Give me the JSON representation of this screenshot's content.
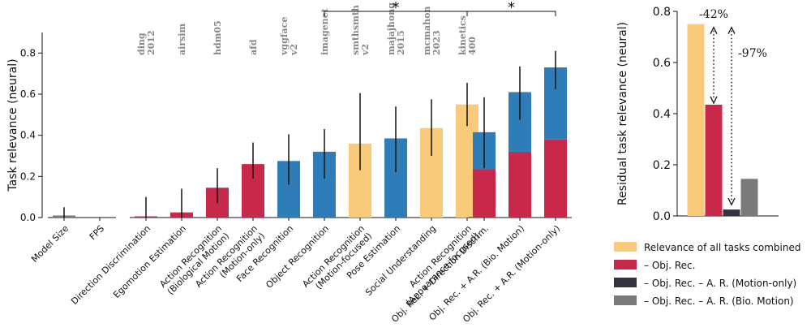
{
  "colors": {
    "motion": "#c8294a",
    "appearance": "#2e7cb8",
    "mixed": "#f9ca79",
    "dark": "#33343f",
    "gray": "#7a7a7a",
    "error": "#111111"
  },
  "chart_data": [
    {
      "type": "bar",
      "ylabel": "Task relevance (neural)",
      "ylim": [
        0,
        0.9
      ],
      "yticks": [
        "0.0",
        "0.2",
        "0.4",
        "0.6",
        "0.8"
      ],
      "grid": false,
      "groups": [
        {
          "bars": [
            {
              "label": "Model Size",
              "value": 0.01,
              "err": [
                0.0,
                0.05
              ],
              "color": "gray",
              "dataset": []
            },
            {
              "label": "FPS",
              "value": 0.0,
              "err": null,
              "color": "gray",
              "dataset": []
            }
          ]
        },
        {
          "bars": [
            {
              "label": "Direction Discrimination",
              "value": 0.005,
              "err": [
                0.0,
                0.1
              ],
              "color": "motion",
              "dataset": [
                "ding",
                "2012"
              ]
            },
            {
              "label": "Egomotion Estimation",
              "value": 0.025,
              "err": [
                0.0,
                0.14
              ],
              "color": "motion",
              "dataset": [
                "airsim"
              ]
            },
            {
              "label": "Action Recognition|(Biological Motion)",
              "value": 0.145,
              "err": [
                0.07,
                0.24
              ],
              "color": "motion",
              "dataset": [
                "hdm05"
              ]
            },
            {
              "label": "Action Recognition|(Motion-only)",
              "value": 0.26,
              "err": [
                0.19,
                0.365
              ],
              "color": "motion",
              "dataset": [
                "afd"
              ]
            },
            {
              "label": "Face Recognition",
              "value": 0.275,
              "err": [
                0.16,
                0.405
              ],
              "color": "appearance",
              "dataset": [
                "vggface",
                "v2"
              ]
            },
            {
              "label": "Object Recognition",
              "value": 0.32,
              "err": [
                0.19,
                0.43
              ],
              "color": "appearance",
              "dataset": [
                "imagenet"
              ]
            },
            {
              "label": "Action Recognition|(Motion-focused)",
              "value": 0.36,
              "err": [
                0.23,
                0.605
              ],
              "color": "mixed",
              "dataset": [
                "smthsmth",
                "v2"
              ]
            },
            {
              "label": "Pose Estimation",
              "value": 0.385,
              "err": [
                0.22,
                0.54
              ],
              "color": "appearance",
              "dataset": [
                "majajhong",
                "2015"
              ]
            },
            {
              "label": "Social Understanding",
              "value": 0.435,
              "err": [
                0.3,
                0.575
              ],
              "color": "mixed",
              "dataset": [
                "mcmahon",
                "2023"
              ]
            },
            {
              "label": "Action Recognition|(Appearance-focused)",
              "value": 0.55,
              "err": [
                0.445,
                0.655
              ],
              "color": "mixed",
              "dataset": [
                "kinetics",
                "400"
              ]
            }
          ]
        },
        {
          "bars": [
            {
              "label": "Obj. Rec. + Direction Discrim.",
              "value": 0.415,
              "motion_part": 0.235,
              "err": [
                0.24,
                0.585
              ],
              "color": "stack",
              "dataset": []
            },
            {
              "label": "Obj. Rec. + A.R. (Bio. Motion)",
              "value": 0.61,
              "motion_part": 0.32,
              "err": [
                0.475,
                0.735
              ],
              "color": "stack",
              "dataset": []
            },
            {
              "label": "Obj. Rec. + A.R. (Motion-only)",
              "value": 0.73,
              "motion_part": 0.38,
              "err": [
                0.625,
                0.81
              ],
              "color": "stack",
              "dataset": []
            }
          ]
        }
      ],
      "significance": [
        {
          "label": "*",
          "from": "Object Recognition",
          "to": "Action Recognition|(Appearance-focused)"
        },
        {
          "label": "*",
          "from": "Action Recognition|(Appearance-focused)",
          "to": "Obj. Rec. + A.R. (Motion-only)"
        }
      ]
    },
    {
      "type": "bar",
      "ylabel": "Residual task relevance (neural)",
      "ylim": [
        0,
        0.8
      ],
      "yticks": [
        "0.0",
        "0.2",
        "0.4",
        "0.6",
        "0.8"
      ],
      "grid": false,
      "bars": [
        {
          "name": "Relevance of all tasks combined",
          "value": 0.75,
          "color": "mixed"
        },
        {
          "name": "– Obj. Rec.",
          "value": 0.435,
          "color": "motion"
        },
        {
          "name": "– Obj. Rec. – A. R. (Motion-only)",
          "value": 0.025,
          "color": "dark"
        },
        {
          "name": "– Obj. Rec. – A. R. (Bio. Motion)",
          "value": 0.145,
          "color": "gray"
        }
      ],
      "annotations": [
        {
          "text": "-42%",
          "from": 0,
          "to": 1
        },
        {
          "text": "-97%",
          "from": 0,
          "to": 2
        }
      ],
      "legend_position": "bottom-right"
    }
  ]
}
